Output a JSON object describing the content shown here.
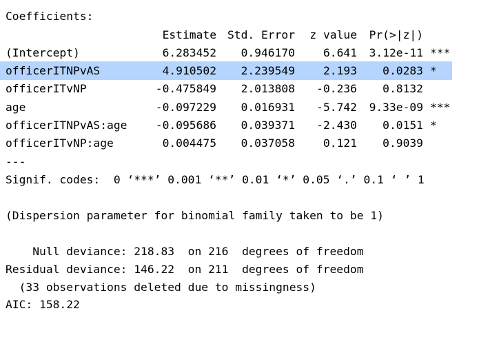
{
  "colors": {
    "background": "#ffffff",
    "text": "#000000",
    "selection_highlight": "#b5d5ff"
  },
  "output": {
    "header": "Coefficients:",
    "columns": {
      "estimate": "Estimate",
      "std_error": "Std. Error",
      "z_value": "z value",
      "p_value": "Pr(>|z|)"
    },
    "rows": [
      {
        "term": "(Intercept)",
        "estimate": "6.283452",
        "std_error": "0.946170",
        "z_value": "6.641",
        "p_value": "3.12e-11",
        "signif": "***",
        "selected": false
      },
      {
        "term": "officerITNPvAS",
        "estimate": "4.910502",
        "std_error": "2.239549",
        "z_value": "2.193",
        "p_value": "0.0283",
        "signif": "*",
        "selected": true
      },
      {
        "term": "officerITvNP",
        "estimate": "-0.475849",
        "std_error": "2.013808",
        "z_value": "-0.236",
        "p_value": "0.8132",
        "signif": "",
        "selected": false
      },
      {
        "term": "age",
        "estimate": "-0.097229",
        "std_error": "0.016931",
        "z_value": "-5.742",
        "p_value": "9.33e-09",
        "signif": "***",
        "selected": false
      },
      {
        "term": "officerITNPvAS:age",
        "estimate": "-0.095686",
        "std_error": "0.039371",
        "z_value": "-2.430",
        "p_value": "0.0151",
        "signif": "*",
        "selected": false
      },
      {
        "term": "officerITvNP:age",
        "estimate": "0.004475",
        "std_error": "0.037058",
        "z_value": "0.121",
        "p_value": "0.9039",
        "signif": "",
        "selected": false
      }
    ],
    "separator": "---",
    "signif_codes": "Signif. codes:  0 ‘***’ 0.001 ‘**’ 0.01 ‘*’ 0.05 ‘.’ 0.1 ‘ ’ 1",
    "dispersion_note": "(Dispersion parameter for binomial family taken to be 1)",
    "null_deviance": "    Null deviance: 218.83  on 216  degrees of freedom",
    "residual_deviance": "Residual deviance: 146.22  on 211  degrees of freedom",
    "missingness_note": "  (33 observations deleted due to missingness)",
    "aic": "AIC: 158.22"
  }
}
